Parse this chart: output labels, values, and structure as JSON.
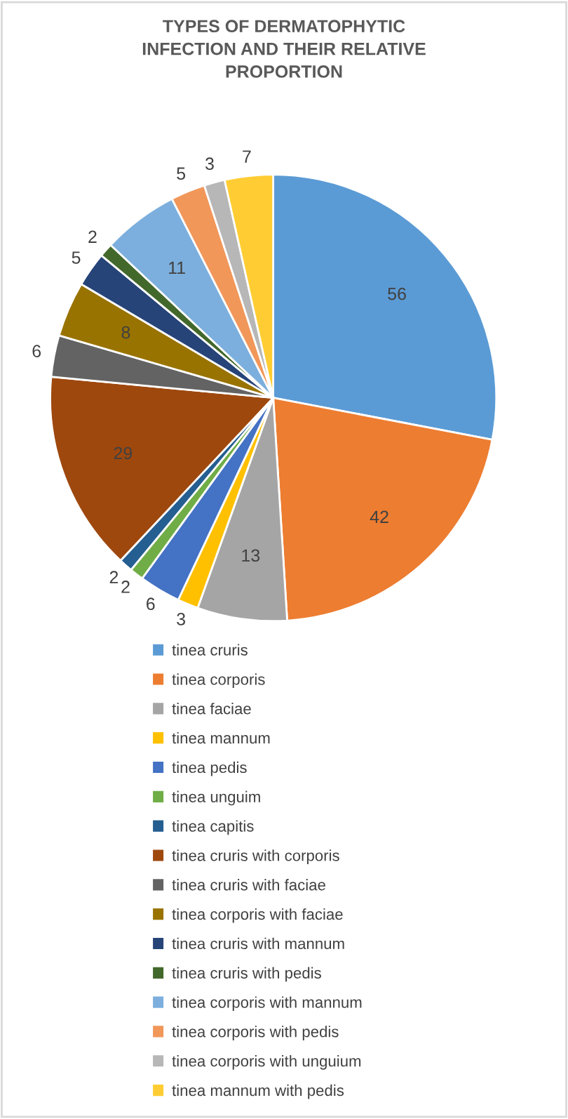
{
  "chart_data": {
    "type": "pie",
    "title": "TYPES OF DERMATOPHYTIC\nINFECTION AND THEIR RELATIVE\nPROPORTION",
    "categories": [
      "tinea cruris",
      "tinea corporis",
      "tinea faciae",
      "tinea mannum",
      "tinea pedis",
      "tinea unguim",
      "tinea capitis",
      "tinea cruris with corporis",
      "tinea cruris with faciae",
      "tinea corporis with faciae",
      "tinea cruris with mannum",
      "tinea cruris with pedis",
      "tinea corporis with mannum",
      "tinea corporis with pedis",
      "tinea corporis with unguium",
      "tinea mannum with pedis"
    ],
    "values": [
      56,
      42,
      13,
      3,
      6,
      2,
      2,
      29,
      6,
      8,
      5,
      2,
      11,
      5,
      3,
      7
    ],
    "colors": [
      "#5b9bd5",
      "#ed7d31",
      "#a5a5a5",
      "#ffc000",
      "#4472c4",
      "#70ad47",
      "#255e91",
      "#9e480e",
      "#636363",
      "#997300",
      "#264478",
      "#43682b",
      "#7cafdd",
      "#f1975a",
      "#b7b7b7",
      "#ffcd33"
    ],
    "data_labels": true,
    "legend": "bottom"
  }
}
